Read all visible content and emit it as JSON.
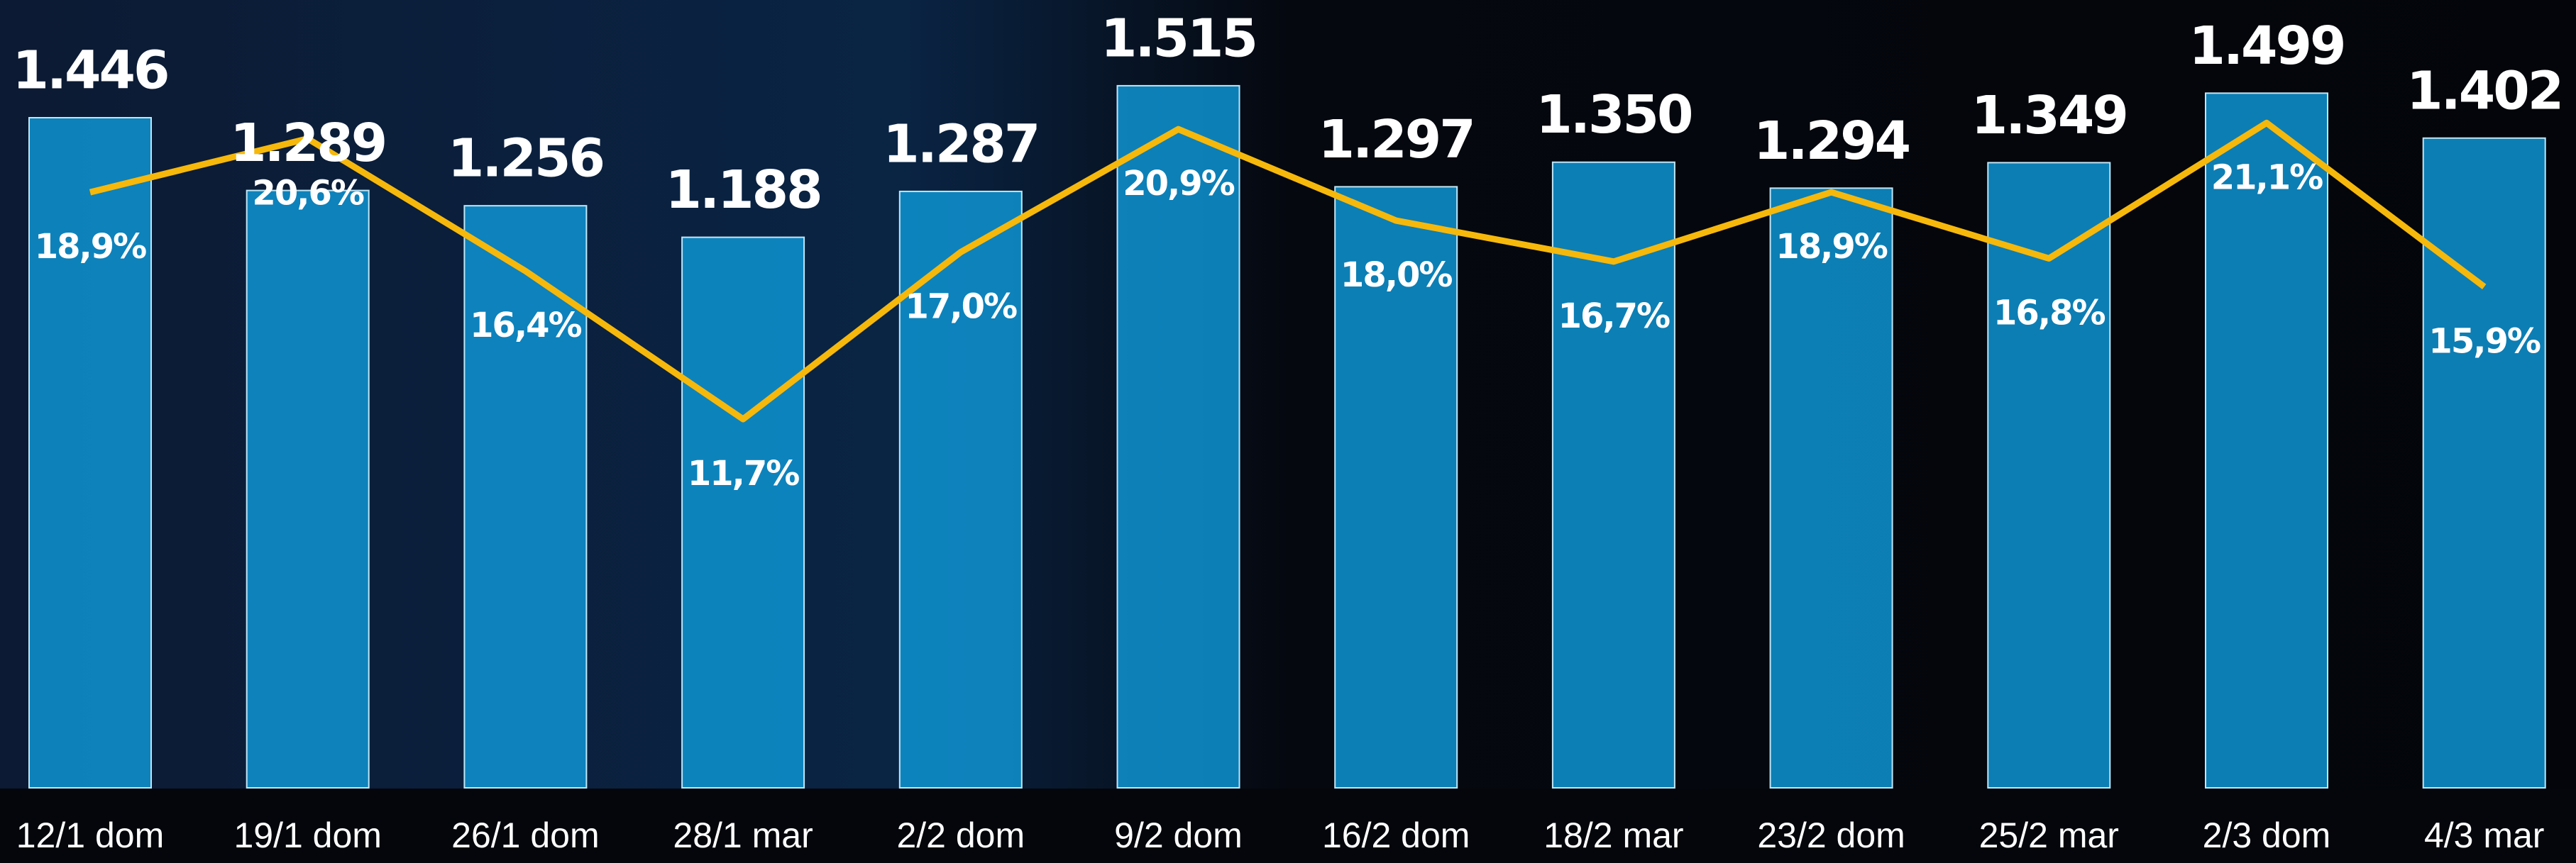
{
  "chart_data": {
    "type": "bar",
    "categories": [
      "12/1 dom",
      "19/1 dom",
      "26/1 dom",
      "28/1 mar",
      "2/2 dom",
      "9/2 dom",
      "16/2 dom",
      "18/2 mar",
      "23/2 dom",
      "25/2 mar",
      "2/3 dom",
      "4/3 mar"
    ],
    "ylim": [
      0,
      1700
    ],
    "y2lim": [
      0,
      25
    ],
    "series": [
      {
        "type": "bar",
        "color": "#0e94d2",
        "values": [
          1446,
          1289,
          1256,
          1188,
          1287,
          1515,
          1297,
          1350,
          1294,
          1349,
          1499,
          1402
        ],
        "value_labels": [
          "1.446",
          "1.289",
          "1.256",
          "1.188",
          "1.287",
          "1.515",
          "1.297",
          "1.350",
          "1.294",
          "1.349",
          "1.499",
          "1.402"
        ]
      },
      {
        "type": "line",
        "axis": "y2",
        "color": "#f6b80b",
        "values": [
          18.9,
          20.6,
          16.4,
          11.7,
          17.0,
          20.9,
          18.0,
          16.7,
          18.9,
          16.8,
          21.1,
          15.9
        ],
        "value_labels": [
          "18,9%",
          "20,6%",
          "16,4%",
          "11,7%",
          "17,0%",
          "20,9%",
          "18,0%",
          "16,7%",
          "18,9%",
          "16,8%",
          "21,1%",
          "15,9%"
        ]
      }
    ]
  }
}
